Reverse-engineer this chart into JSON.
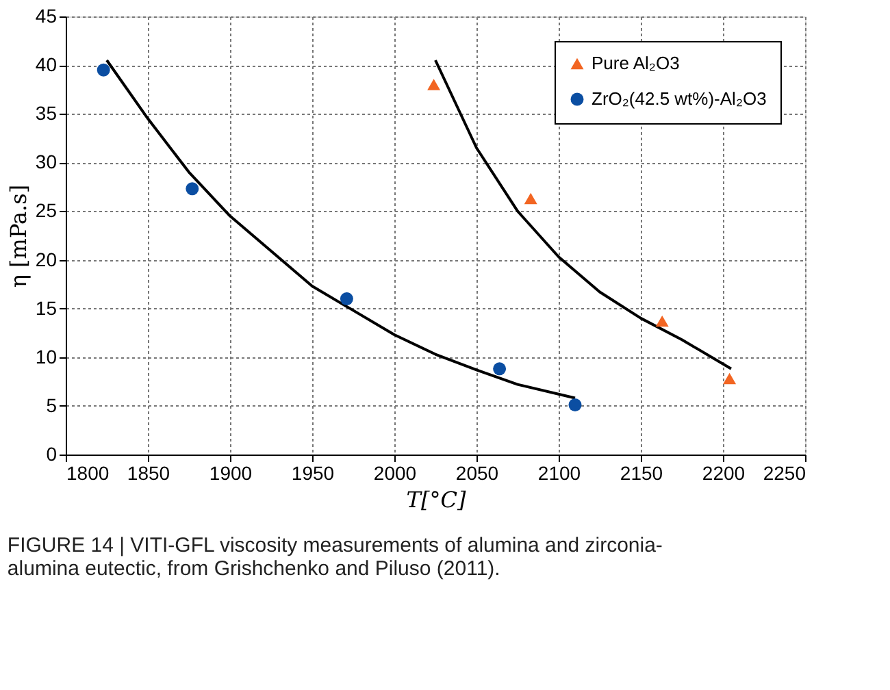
{
  "chart_data": {
    "type": "scatter",
    "xlabel": "T[°C]",
    "ylabel": "η [mPa.s]",
    "xlim": [
      1800,
      2250
    ],
    "xticks": [
      1800,
      1850,
      1900,
      1950,
      2000,
      2050,
      2100,
      2150,
      2200,
      2250
    ],
    "ylim": [
      0,
      45
    ],
    "yticks": [
      0,
      5,
      10,
      15,
      20,
      25,
      30,
      35,
      40,
      45
    ],
    "grid": true,
    "legend": "top right",
    "series": [
      {
        "name": "Pure Al₂O3",
        "color": "#f26522",
        "marker": "triangle",
        "x": [
          2024,
          2083,
          2163,
          2204
        ],
        "values": [
          38,
          26.3,
          13.7,
          7.8
        ]
      },
      {
        "name": "ZrO₂(42.5 wt%)-Al₂O3",
        "color": "#0b4ea2",
        "marker": "circle",
        "x": [
          1823,
          1877,
          1971,
          2064,
          2110
        ],
        "values": [
          39.5,
          27.3,
          16,
          8.8,
          5.1
        ]
      },
      {
        "type": "line",
        "color": "#000000",
        "marker": "none",
        "x": [
          2025,
          2050,
          2075,
          2100,
          2125,
          2150,
          2175,
          2205
        ],
        "values": [
          40.5,
          31.5,
          25,
          20.3,
          16.7,
          14,
          11.8,
          8.8
        ]
      },
      {
        "type": "line",
        "color": "#000000",
        "marker": "none",
        "x": [
          1825,
          1850,
          1875,
          1900,
          1950,
          2000,
          2025,
          2050,
          2075,
          2110
        ],
        "values": [
          40.5,
          34.5,
          29,
          24.5,
          17.3,
          12.3,
          10.3,
          8.7,
          7.2,
          5.8
        ]
      }
    ],
    "annotations": [
      "FIGURE 14 | VITI-GFL viscosity measurements of alumina and zirconia-alumina eutectic, from Grishchenko and Piluso (2011)."
    ]
  }
}
